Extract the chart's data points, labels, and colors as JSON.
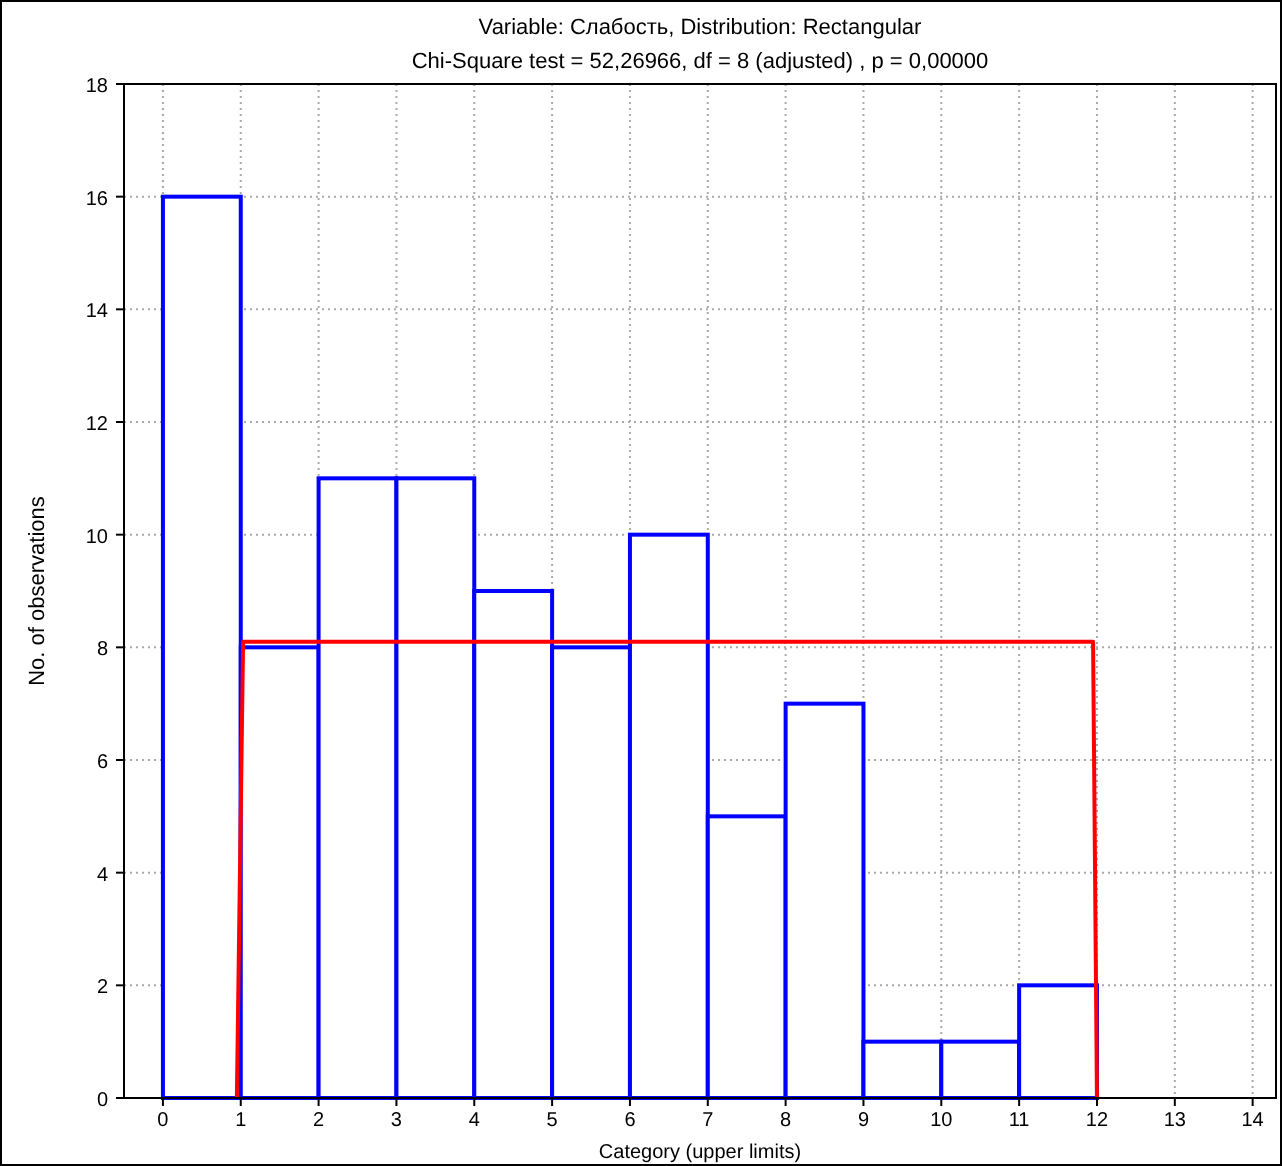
{
  "chart_data": {
    "type": "histogram",
    "title": "Variable: Слабость, Distribution: Rectangular",
    "subtitle": "Chi-Square test = 52,26966, df = 8 (adjusted) , p = 0,00000",
    "xlabel": "Category (upper limits)",
    "ylabel": "No. of observations",
    "bins": [
      0,
      1,
      2,
      3,
      4,
      5,
      6,
      7,
      8,
      9,
      10,
      11,
      12
    ],
    "series": [
      {
        "color": "#0000ff",
        "values": [
          16,
          8,
          11,
          11,
          9,
          8,
          10,
          5,
          7,
          1,
          1,
          2
        ]
      },
      {
        "type": "line",
        "color": "#ff0000",
        "x": [
          0.95,
          1.03,
          11.95,
          12
        ],
        "values": [
          0,
          8.1,
          8.1,
          0
        ]
      }
    ],
    "xlim": [
      -0.5,
      14.3
    ],
    "xticks": [
      0,
      1,
      2,
      3,
      4,
      5,
      6,
      7,
      8,
      9,
      10,
      11,
      12,
      13,
      14
    ],
    "ylim": [
      0,
      18
    ],
    "yticks": [
      0,
      2,
      4,
      6,
      8,
      10,
      12,
      14,
      16,
      18
    ],
    "grid": true
  }
}
